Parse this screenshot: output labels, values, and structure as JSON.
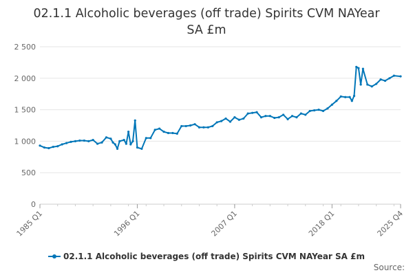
{
  "title_line1": "02.1.1 Alcoholic beverages (off trade) Spirits CVM NAYear",
  "title_line2": "SA £m",
  "legend_label": "02.1.1 Alcoholic beverages (off trade) Spirits CVM NAYear SA £m",
  "source_label": "Source:",
  "colors": {
    "series": "#0076b8",
    "grid": "#e6e6e6",
    "axis": "#cccccc"
  },
  "chart_data": {
    "type": "line",
    "title": "02.1.1 Alcoholic beverages (off trade) Spirits CVM NAYear SA £m",
    "xlabel": "",
    "ylabel": "",
    "x_range": [
      "1985 Q1",
      "2025 Q4"
    ],
    "x_tick_labels": [
      "1985 Q1",
      "1996 Q1",
      "2007 Q1",
      "2018 Q1",
      "2025 Q4"
    ],
    "y_tick_labels": [
      "0",
      "500",
      "1 000",
      "1 500",
      "2 000",
      "2 500"
    ],
    "ylim": [
      0,
      2500
    ],
    "grid": true,
    "legend": "bottom",
    "series": [
      {
        "name": "02.1.1 Alcoholic beverages (off trade) Spirits CVM NAYear SA £m",
        "x": [
          "1985 Q1",
          "1985 Q3",
          "1986 Q1",
          "1986 Q3",
          "1987 Q1",
          "1987 Q3",
          "1988 Q1",
          "1988 Q3",
          "1989 Q1",
          "1989 Q3",
          "1990 Q1",
          "1990 Q3",
          "1991 Q1",
          "1991 Q3",
          "1992 Q1",
          "1992 Q3",
          "1993 Q1",
          "1993 Q2",
          "1993 Q3",
          "1993 Q4",
          "1994 Q1",
          "1994 Q3",
          "1994 Q4",
          "1995 Q1",
          "1995 Q2",
          "1995 Q3",
          "1995 Q4",
          "1996 Q1",
          "1996 Q3",
          "1997 Q1",
          "1997 Q3",
          "1998 Q1",
          "1998 Q3",
          "1999 Q1",
          "1999 Q3",
          "2000 Q1",
          "2000 Q3",
          "2001 Q1",
          "2001 Q3",
          "2002 Q1",
          "2002 Q3",
          "2003 Q1",
          "2003 Q3",
          "2004 Q1",
          "2004 Q3",
          "2005 Q1",
          "2005 Q3",
          "2006 Q1",
          "2006 Q3",
          "2007 Q1",
          "2007 Q3",
          "2008 Q1",
          "2008 Q3",
          "2009 Q1",
          "2009 Q3",
          "2010 Q1",
          "2010 Q3",
          "2011 Q1",
          "2011 Q3",
          "2012 Q1",
          "2012 Q3",
          "2013 Q1",
          "2013 Q3",
          "2014 Q1",
          "2014 Q3",
          "2015 Q1",
          "2015 Q3",
          "2016 Q1",
          "2016 Q3",
          "2017 Q1",
          "2017 Q3",
          "2018 Q1",
          "2018 Q3",
          "2019 Q1",
          "2019 Q3",
          "2020 Q1",
          "2020 Q2",
          "2020 Q3",
          "2020 Q4",
          "2021 Q1",
          "2021 Q2",
          "2021 Q3",
          "2022 Q1",
          "2022 Q3",
          "2023 Q1",
          "2023 Q3",
          "2024 Q1",
          "2024 Q3",
          "2025 Q1",
          "2025 Q4"
        ],
        "values": [
          930,
          900,
          890,
          910,
          920,
          950,
          970,
          990,
          1000,
          1010,
          1010,
          1000,
          1020,
          960,
          980,
          1060,
          1040,
          980,
          950,
          880,
          1000,
          1020,
          960,
          1150,
          950,
          1000,
          1330,
          900,
          880,
          1050,
          1050,
          1180,
          1200,
          1150,
          1130,
          1130,
          1120,
          1240,
          1240,
          1250,
          1270,
          1220,
          1220,
          1220,
          1240,
          1300,
          1320,
          1360,
          1310,
          1380,
          1340,
          1360,
          1440,
          1450,
          1460,
          1380,
          1400,
          1400,
          1370,
          1380,
          1420,
          1350,
          1400,
          1380,
          1440,
          1420,
          1480,
          1490,
          1500,
          1480,
          1520,
          1580,
          1640,
          1710,
          1700,
          1700,
          1640,
          1720,
          2180,
          2160,
          1900,
          2150,
          1900,
          1870,
          1910,
          1980,
          1960,
          2000,
          2040,
          2030
        ]
      }
    ]
  }
}
